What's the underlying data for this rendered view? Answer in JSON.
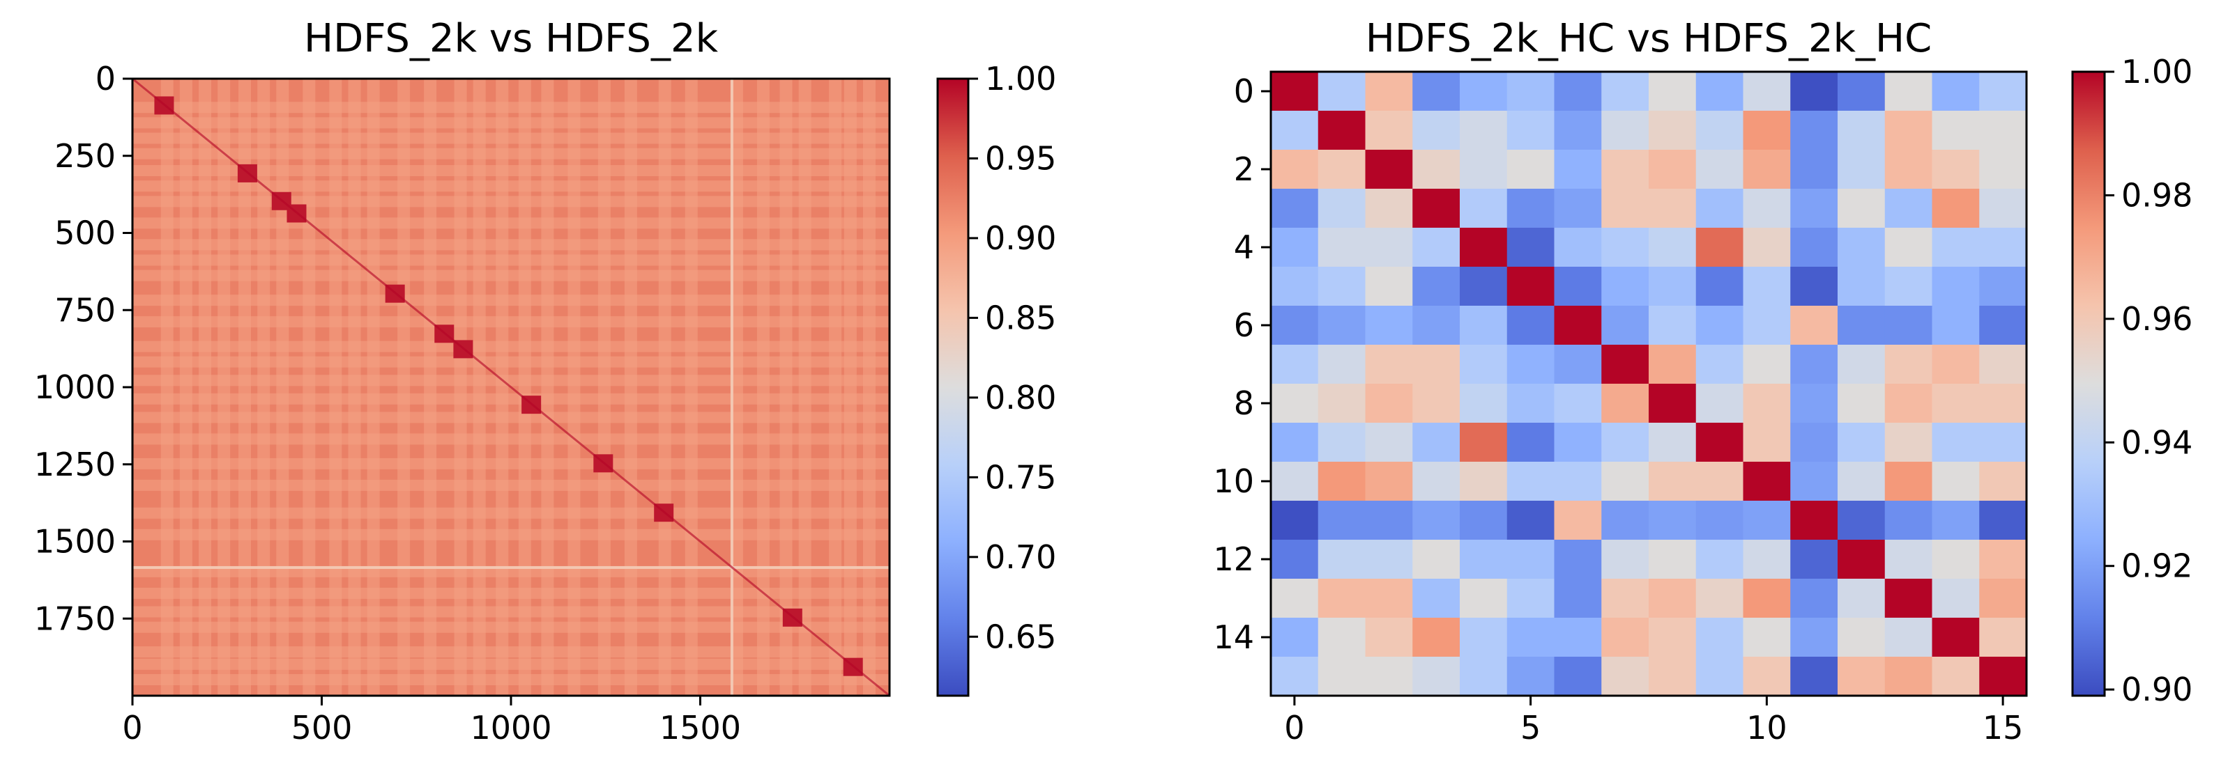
{
  "chart_data": [
    {
      "type": "heatmap",
      "title": "HDFS_2k vs HDFS_2k",
      "xlabel": "",
      "ylabel": "",
      "matrix_size": 2000,
      "xlim": [
        0,
        2000
      ],
      "ylim": [
        2000,
        0
      ],
      "x_ticks": [
        0,
        500,
        1000,
        1500
      ],
      "y_ticks": [
        0,
        250,
        500,
        750,
        1000,
        1250,
        1500,
        1750
      ],
      "x_tick_labels": [
        "0",
        "500",
        "1000",
        "1500"
      ],
      "y_tick_labels": [
        "0",
        "250",
        "500",
        "750",
        "1000",
        "1250",
        "1500",
        "1750"
      ],
      "colormap": "coolwarm",
      "vmin": 0.613,
      "vmax": 1.0,
      "colorbar_ticks": [
        0.65,
        0.7,
        0.75,
        0.8,
        0.85,
        0.9,
        0.95,
        1.0
      ],
      "colorbar_tick_labels": [
        "0.65",
        "0.70",
        "0.75",
        "0.80",
        "0.85",
        "0.90",
        "0.95",
        "1.00"
      ],
      "typical_value": 0.925,
      "bright_band_positions": [
        75,
        125,
        175,
        225,
        280,
        330,
        380,
        450,
        520,
        570,
        620,
        700,
        770,
        850,
        900,
        960,
        1020,
        1080,
        1150,
        1230,
        1300,
        1390,
        1460,
        1580,
        1650,
        1710,
        1760,
        1840,
        1880,
        1930
      ],
      "pale_line_position": 1580,
      "dark_spot_positions": [
        80,
        300,
        390,
        430,
        690,
        820,
        870,
        1050,
        1240,
        1400,
        1740,
        1900
      ]
    },
    {
      "type": "heatmap",
      "title": "HDFS_2k_HC vs HDFS_2k_HC",
      "xlabel": "",
      "ylabel": "",
      "x_ticks": [
        0,
        5,
        10,
        15
      ],
      "y_ticks": [
        0,
        2,
        4,
        6,
        8,
        10,
        12,
        14
      ],
      "x_tick_labels": [
        "0",
        "5",
        "10",
        "15"
      ],
      "y_tick_labels": [
        "0",
        "2",
        "4",
        "6",
        "8",
        "10",
        "12",
        "14"
      ],
      "colormap": "coolwarm",
      "vmin": 0.899,
      "vmax": 1.0,
      "colorbar_ticks": [
        0.9,
        0.92,
        0.94,
        0.96,
        0.98,
        1.0
      ],
      "colorbar_tick_labels": [
        "0.90",
        "0.92",
        "0.94",
        "0.96",
        "0.98",
        "1.00"
      ],
      "matrix": [
        [
          1.0,
          0.935,
          0.965,
          0.915,
          0.925,
          0.93,
          0.915,
          0.935,
          0.95,
          0.925,
          0.945,
          0.9,
          0.91,
          0.95,
          0.925,
          0.935
        ],
        [
          0.935,
          1.0,
          0.96,
          0.94,
          0.945,
          0.935,
          0.92,
          0.945,
          0.955,
          0.94,
          0.975,
          0.915,
          0.94,
          0.965,
          0.95,
          0.95
        ],
        [
          0.965,
          0.96,
          1.0,
          0.955,
          0.945,
          0.95,
          0.925,
          0.96,
          0.965,
          0.945,
          0.97,
          0.915,
          0.94,
          0.965,
          0.96,
          0.95
        ],
        [
          0.915,
          0.94,
          0.955,
          1.0,
          0.935,
          0.915,
          0.92,
          0.96,
          0.96,
          0.93,
          0.945,
          0.92,
          0.95,
          0.93,
          0.975,
          0.945
        ],
        [
          0.925,
          0.945,
          0.945,
          0.935,
          1.0,
          0.905,
          0.93,
          0.935,
          0.94,
          0.985,
          0.955,
          0.915,
          0.93,
          0.95,
          0.935,
          0.935
        ],
        [
          0.93,
          0.935,
          0.95,
          0.915,
          0.905,
          1.0,
          0.91,
          0.925,
          0.93,
          0.91,
          0.935,
          0.903,
          0.93,
          0.935,
          0.925,
          0.92
        ],
        [
          0.915,
          0.92,
          0.925,
          0.92,
          0.93,
          0.91,
          1.0,
          0.92,
          0.935,
          0.925,
          0.935,
          0.965,
          0.915,
          0.915,
          0.925,
          0.91
        ],
        [
          0.935,
          0.945,
          0.96,
          0.96,
          0.935,
          0.925,
          0.92,
          1.0,
          0.97,
          0.935,
          0.95,
          0.918,
          0.945,
          0.96,
          0.965,
          0.955
        ],
        [
          0.95,
          0.955,
          0.965,
          0.96,
          0.94,
          0.93,
          0.935,
          0.97,
          1.0,
          0.945,
          0.96,
          0.92,
          0.95,
          0.965,
          0.96,
          0.96
        ],
        [
          0.925,
          0.94,
          0.945,
          0.93,
          0.985,
          0.91,
          0.925,
          0.935,
          0.945,
          1.0,
          0.96,
          0.918,
          0.935,
          0.955,
          0.935,
          0.935
        ],
        [
          0.945,
          0.975,
          0.97,
          0.945,
          0.955,
          0.935,
          0.935,
          0.95,
          0.96,
          0.96,
          1.0,
          0.92,
          0.945,
          0.975,
          0.95,
          0.96
        ],
        [
          0.9,
          0.915,
          0.915,
          0.92,
          0.915,
          0.903,
          0.965,
          0.918,
          0.92,
          0.918,
          0.92,
          1.0,
          0.905,
          0.915,
          0.92,
          0.903
        ],
        [
          0.91,
          0.94,
          0.94,
          0.95,
          0.93,
          0.93,
          0.915,
          0.945,
          0.95,
          0.935,
          0.945,
          0.905,
          1.0,
          0.945,
          0.95,
          0.965
        ],
        [
          0.95,
          0.965,
          0.965,
          0.93,
          0.95,
          0.935,
          0.915,
          0.96,
          0.965,
          0.955,
          0.975,
          0.915,
          0.945,
          1.0,
          0.945,
          0.97
        ],
        [
          0.925,
          0.95,
          0.96,
          0.975,
          0.935,
          0.925,
          0.925,
          0.965,
          0.96,
          0.935,
          0.95,
          0.92,
          0.95,
          0.945,
          1.0,
          0.96
        ],
        [
          0.935,
          0.95,
          0.95,
          0.945,
          0.935,
          0.92,
          0.91,
          0.955,
          0.96,
          0.935,
          0.96,
          0.903,
          0.965,
          0.97,
          0.96,
          1.0
        ]
      ]
    }
  ]
}
